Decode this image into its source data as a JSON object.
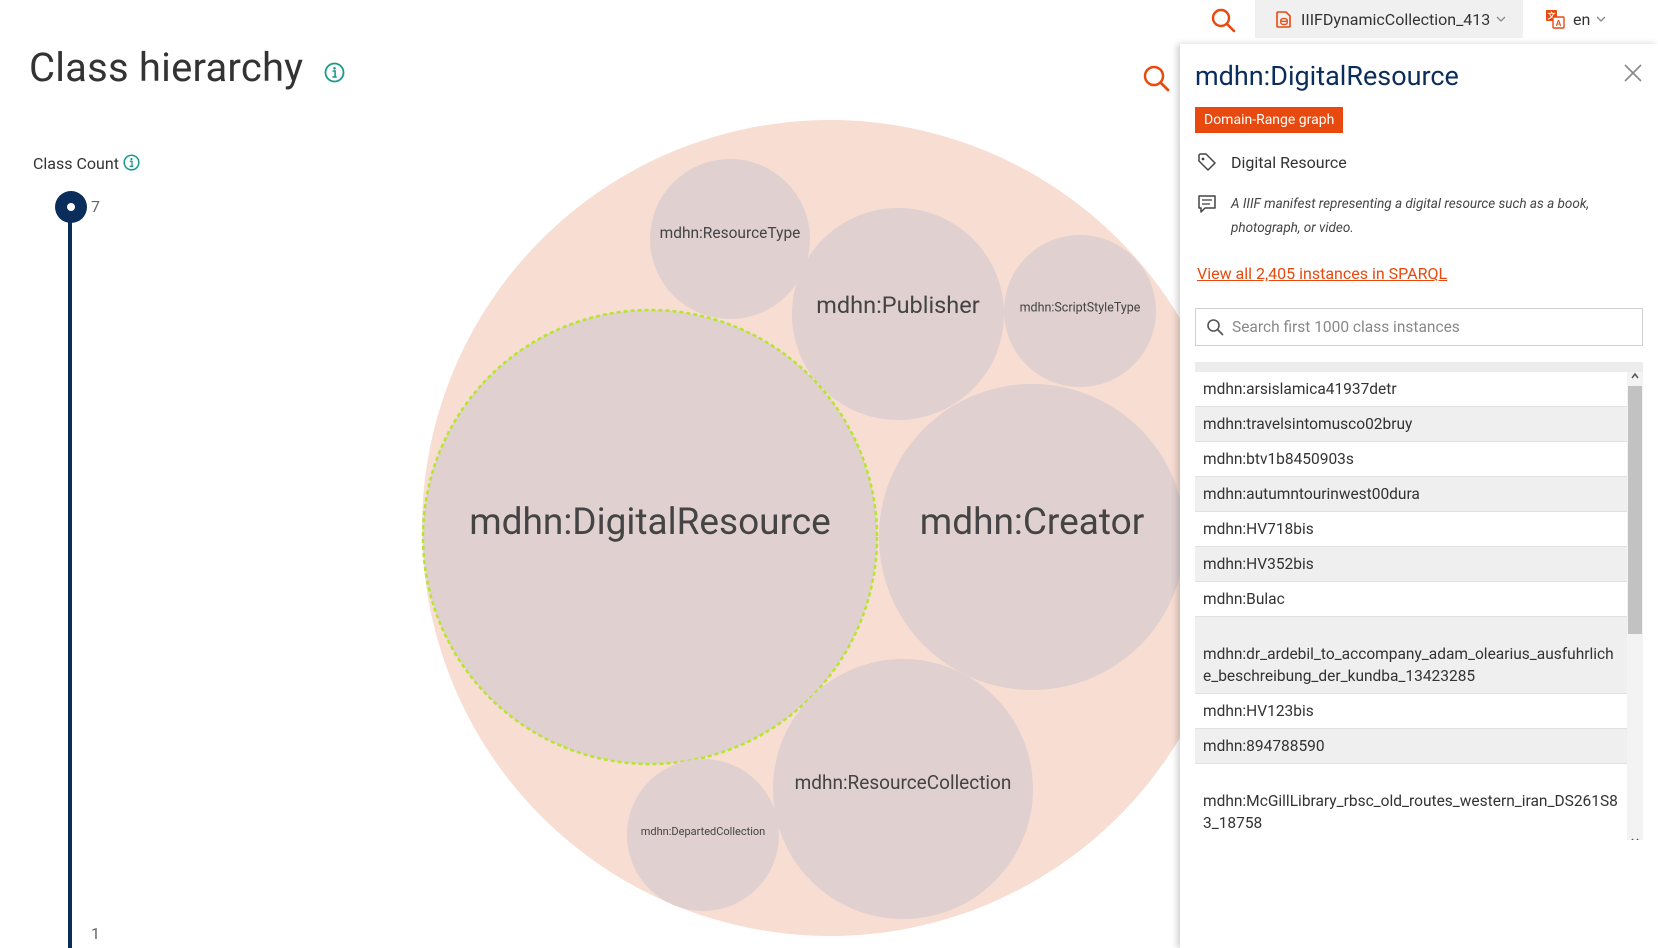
{
  "topbar": {
    "dataset": "IIIFDynamicCollection_413",
    "language": "en"
  },
  "page": {
    "title": "Class hierarchy"
  },
  "slider": {
    "label": "Class Count",
    "max": "7",
    "min": "1",
    "value": 7
  },
  "bubbles": {
    "outer_color": "#f7ddd2",
    "inner_color": "#e0d0d0",
    "highlight_color": "#b5e62e",
    "labels": {
      "resource_type": "mdhn:ResourceType",
      "publisher": "mdhn:Publisher",
      "script_style_type": "mdhn:ScriptStyleType",
      "digital_resource": "mdhn:DigitalResource",
      "creator": "mdhn:Creator",
      "resource_collection": "mdhn:ResourceCollection",
      "departed_collection": "mdhn:DepartedCollection"
    }
  },
  "panel": {
    "title": "mdhn:DigitalResource",
    "badge": "Domain-Range graph",
    "label": "Digital Resource",
    "comment": "A IIIF manifest representing a digital resource such as a book, photograph, or video.",
    "sparql_link": "View all 2,405 instances in SPARQL",
    "search_placeholder": "Search first 1000 class instances",
    "accent_color": "#e8490f",
    "title_color": "#0b2d5b",
    "instances": [
      "mdhn:arsislamica41937detr",
      "mdhn:travelsintomusco02bruy",
      "mdhn:btv1b8450903s",
      "mdhn:autumntourinwest00dura",
      "mdhn:HV718bis",
      "mdhn:HV352bis",
      "mdhn:Bulac",
      "mdhn:dr_ardebil_to_accompany_adam_olearius_ausfuhrliche_beschreibung_der_kundba_13423285",
      "mdhn:HV123bis",
      "mdhn:894788590",
      "mdhn:McGillLibrary_rbsc_old_routes_western_iran_DS261S83_18758"
    ]
  }
}
